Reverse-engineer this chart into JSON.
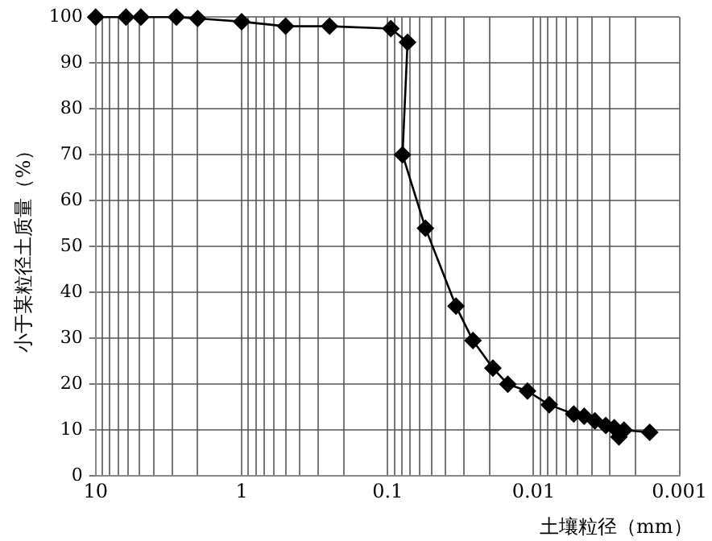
{
  "chart_data": {
    "type": "line",
    "xlabel": "土壤粒径（mm）",
    "ylabel": "小于某粒径土质量（%）",
    "x": [
      10,
      6.2,
      4.9,
      2.8,
      2,
      1,
      0.5,
      0.25,
      0.095,
      0.073,
      0.079,
      0.055,
      0.034,
      0.026,
      0.019,
      0.015,
      0.011,
      0.0078,
      0.0053,
      0.0045,
      0.0038,
      0.0032,
      0.0028,
      0.0026,
      0.0024,
      0.0016
    ],
    "series": [
      {
        "color": "#000000",
        "values": [
          100,
          100,
          100,
          100,
          99.7,
          99,
          98,
          98,
          97.5,
          94.5,
          70,
          54,
          37,
          29.5,
          23.5,
          20,
          18.5,
          15.5,
          13.5,
          13,
          12,
          11,
          10.5,
          8.5,
          10,
          9.5
        ]
      }
    ],
    "xlim": [
      10,
      0.001
    ],
    "xticks": [
      10,
      {
        "value": 9,
        "label": null
      },
      {
        "value": 8,
        "label": null
      },
      {
        "value": 7,
        "label": null
      },
      {
        "value": 6,
        "label": null
      },
      {
        "value": 5,
        "label": null
      },
      {
        "value": 4,
        "label": null
      },
      {
        "value": 3,
        "label": null
      },
      {
        "value": 2,
        "label": null
      },
      1,
      {
        "value": 0.9,
        "label": null
      },
      {
        "value": 0.8,
        "label": null
      },
      {
        "value": 0.7,
        "label": null
      },
      {
        "value": 0.6,
        "label": null
      },
      {
        "value": 0.5,
        "label": null
      },
      {
        "value": 0.4,
        "label": null
      },
      {
        "value": 0.3,
        "label": null
      },
      {
        "value": 0.2,
        "label": null
      },
      {
        "value": 0.1,
        "label": "0.1"
      },
      {
        "value": 0.09,
        "label": null
      },
      {
        "value": 0.08,
        "label": null
      },
      {
        "value": 0.07,
        "label": null
      },
      {
        "value": 0.06,
        "label": null
      },
      {
        "value": 0.05,
        "label": null
      },
      {
        "value": 0.04,
        "label": null
      },
      {
        "value": 0.03,
        "label": null
      },
      {
        "value": 0.02,
        "label": null
      },
      {
        "value": 0.01,
        "label": "0.01"
      },
      {
        "value": 0.009,
        "label": null
      },
      {
        "value": 0.008,
        "label": null
      },
      {
        "value": 0.007,
        "label": null
      },
      {
        "value": 0.006,
        "label": null
      },
      {
        "value": 0.005,
        "label": null
      },
      {
        "value": 0.004,
        "label": null
      },
      {
        "value": 0.003,
        "label": null
      },
      {
        "value": 0.002,
        "label": null
      },
      {
        "value": 0.001,
        "label": "0.001"
      }
    ],
    "ylim": [
      0,
      100
    ],
    "yticks": [
      0,
      10,
      20,
      30,
      40,
      50,
      60,
      70,
      80,
      90,
      100
    ],
    "log": "x",
    "grid": true,
    "legend": false,
    "marker": "diamond",
    "line_style": "solid"
  }
}
